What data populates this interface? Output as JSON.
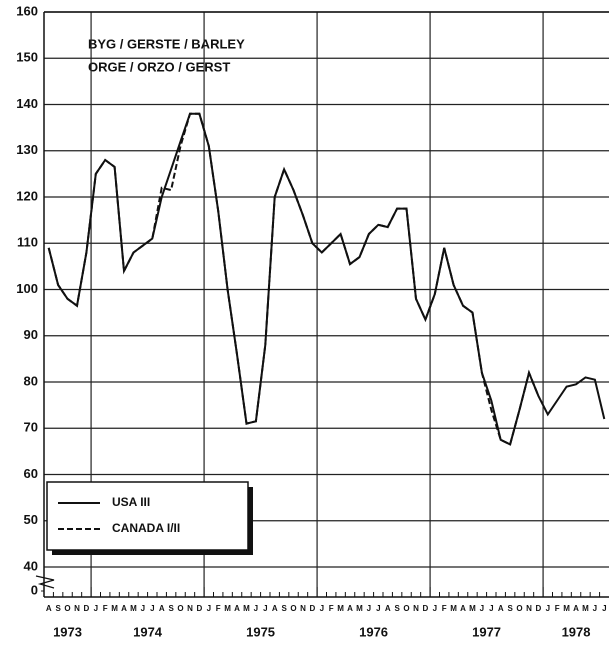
{
  "chart_data": {
    "type": "line",
    "title": [
      "BYG / GERSTE / BARLEY",
      "ORGE / ORZO /  GERST"
    ],
    "categories": [
      "A",
      "S",
      "O",
      "N",
      "D",
      "J",
      "F",
      "M",
      "A",
      "M",
      "J",
      "J",
      "A",
      "S",
      "O",
      "N",
      "D",
      "J",
      "F",
      "M",
      "A",
      "M",
      "J",
      "J",
      "A",
      "S",
      "O",
      "N",
      "D",
      "J",
      "F",
      "M",
      "A",
      "M",
      "J",
      "J",
      "A",
      "S",
      "O",
      "N",
      "D",
      "J",
      "F",
      "M",
      "A",
      "M",
      "J",
      "J",
      "A",
      "S",
      "O",
      "N",
      "D",
      "J",
      "F",
      "M",
      "A",
      "M",
      "J",
      "J"
    ],
    "years": [
      "1973",
      "1974",
      "1975",
      "1976",
      "1977",
      "1978"
    ],
    "series": [
      {
        "name": "USA III",
        "color": "#111111",
        "dash": "solid",
        "values": [
          109,
          101,
          98,
          96.5,
          108,
          125,
          128,
          126.5,
          104,
          108,
          109.5,
          111,
          120,
          126,
          132,
          138,
          138,
          131,
          117,
          100,
          86,
          71,
          71.5,
          88,
          120,
          126,
          121.5,
          116,
          110,
          108,
          110,
          112,
          105.5,
          107,
          112,
          114,
          113.5,
          117.5,
          117.5,
          98,
          93.5,
          99,
          109,
          101,
          96.5,
          95,
          82,
          76,
          67.5,
          66.5,
          74,
          82,
          77,
          73,
          76,
          79,
          79.5,
          81,
          80.5,
          72
        ]
      },
      {
        "name": "CANADA  I/II",
        "color": "#111111",
        "dash": "dashed",
        "values": [
          109,
          101,
          98,
          96.5,
          108,
          125,
          128,
          126.5,
          104,
          108,
          109.5,
          111,
          122,
          121.5,
          131,
          138,
          138,
          131,
          117,
          100,
          86,
          71,
          71.5,
          88,
          120,
          126,
          121.5,
          116,
          110,
          108,
          110,
          112,
          105.5,
          107,
          112,
          114,
          113.5,
          117.5,
          117.5,
          98,
          93.5,
          99,
          109,
          101,
          96.5,
          95,
          82,
          74,
          67.5,
          66.5,
          74,
          82,
          77,
          null,
          null,
          null,
          null,
          null,
          null,
          null
        ]
      }
    ],
    "ylim": [
      0,
      160
    ],
    "yticks": [
      0,
      40,
      50,
      60,
      70,
      80,
      90,
      100,
      110,
      120,
      130,
      140,
      150,
      160
    ],
    "axis_break": true,
    "grid": true
  }
}
